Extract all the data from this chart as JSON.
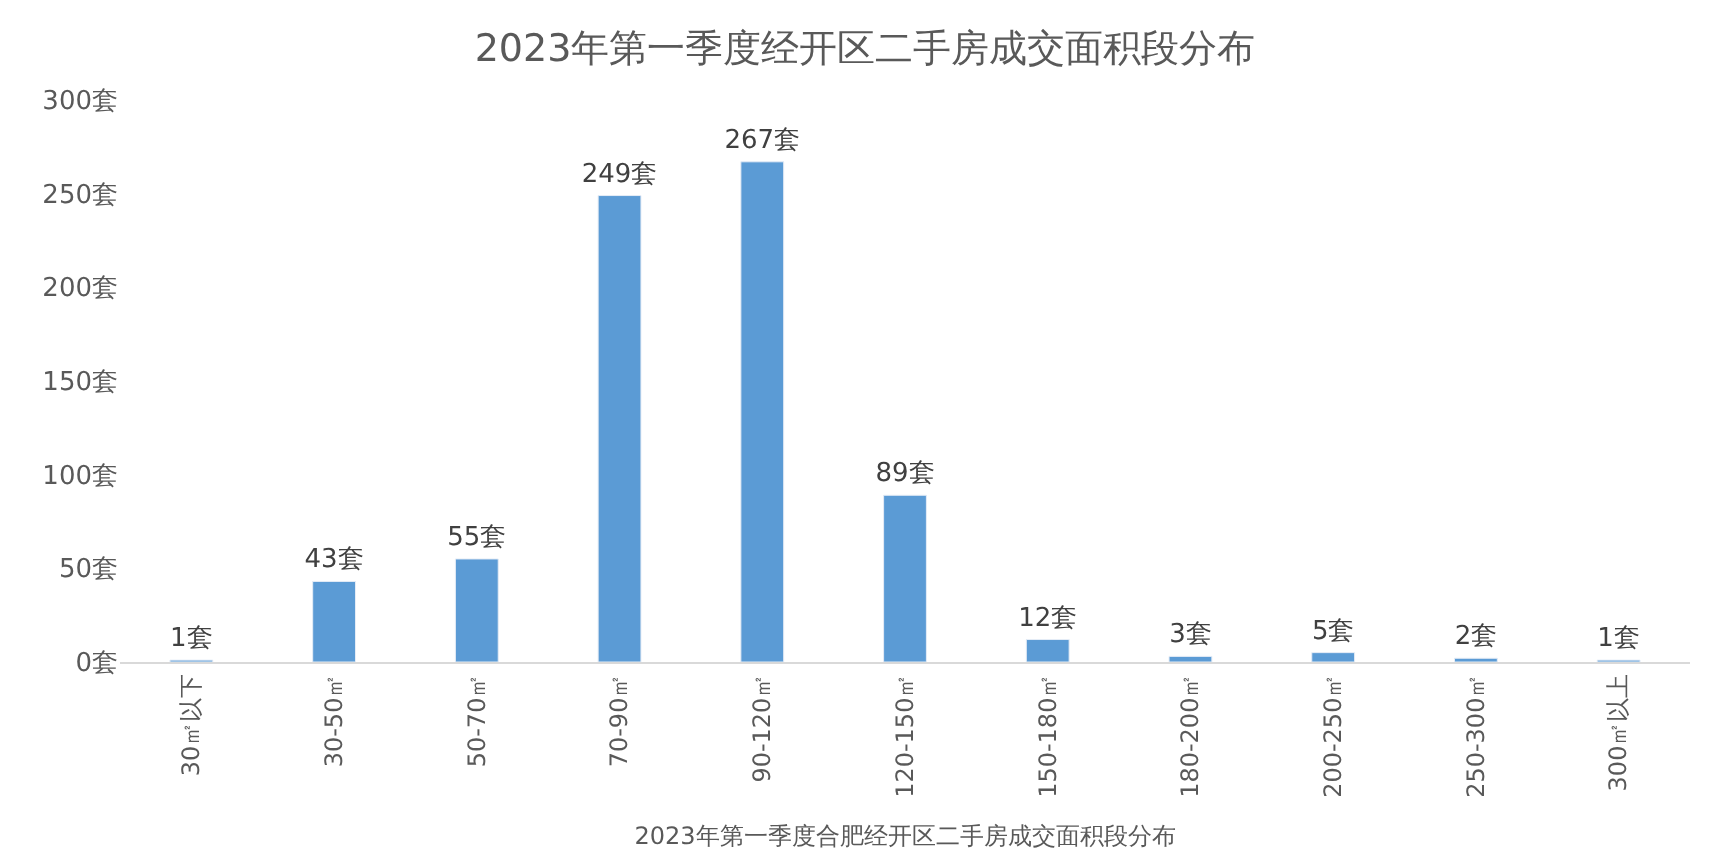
{
  "chart_data": {
    "type": "bar",
    "title": "2023年第一季度经开区二手房成交面积段分布",
    "xlabel": "2023年第一季度合肥经开区二手房成交面积段分布",
    "categories": [
      "30㎡以下",
      "30-50㎡",
      "50-70㎡",
      "70-90㎡",
      "90-120㎡",
      "120-150㎡",
      "150-180㎡",
      "180-200㎡",
      "200-250㎡",
      "250-300㎡",
      "300㎡以上"
    ],
    "values": [
      1,
      43,
      55,
      249,
      267,
      89,
      12,
      3,
      5,
      2,
      1
    ],
    "value_labels": [
      "1套",
      "43套",
      "55套",
      "249套",
      "267套",
      "89套",
      "12套",
      "3套",
      "5套",
      "2套",
      "1套"
    ],
    "color": "#5b9bd5",
    "ylim": [
      0,
      300
    ],
    "yticks": [
      {
        "value": 0,
        "label": "0套"
      },
      {
        "value": 50,
        "label": "50套"
      },
      {
        "value": 100,
        "label": "100套"
      },
      {
        "value": 150,
        "label": "150套"
      },
      {
        "value": 200,
        "label": "200套"
      },
      {
        "value": 250,
        "label": "250套"
      },
      {
        "value": 300,
        "label": "300套"
      }
    ],
    "legend": false
  }
}
